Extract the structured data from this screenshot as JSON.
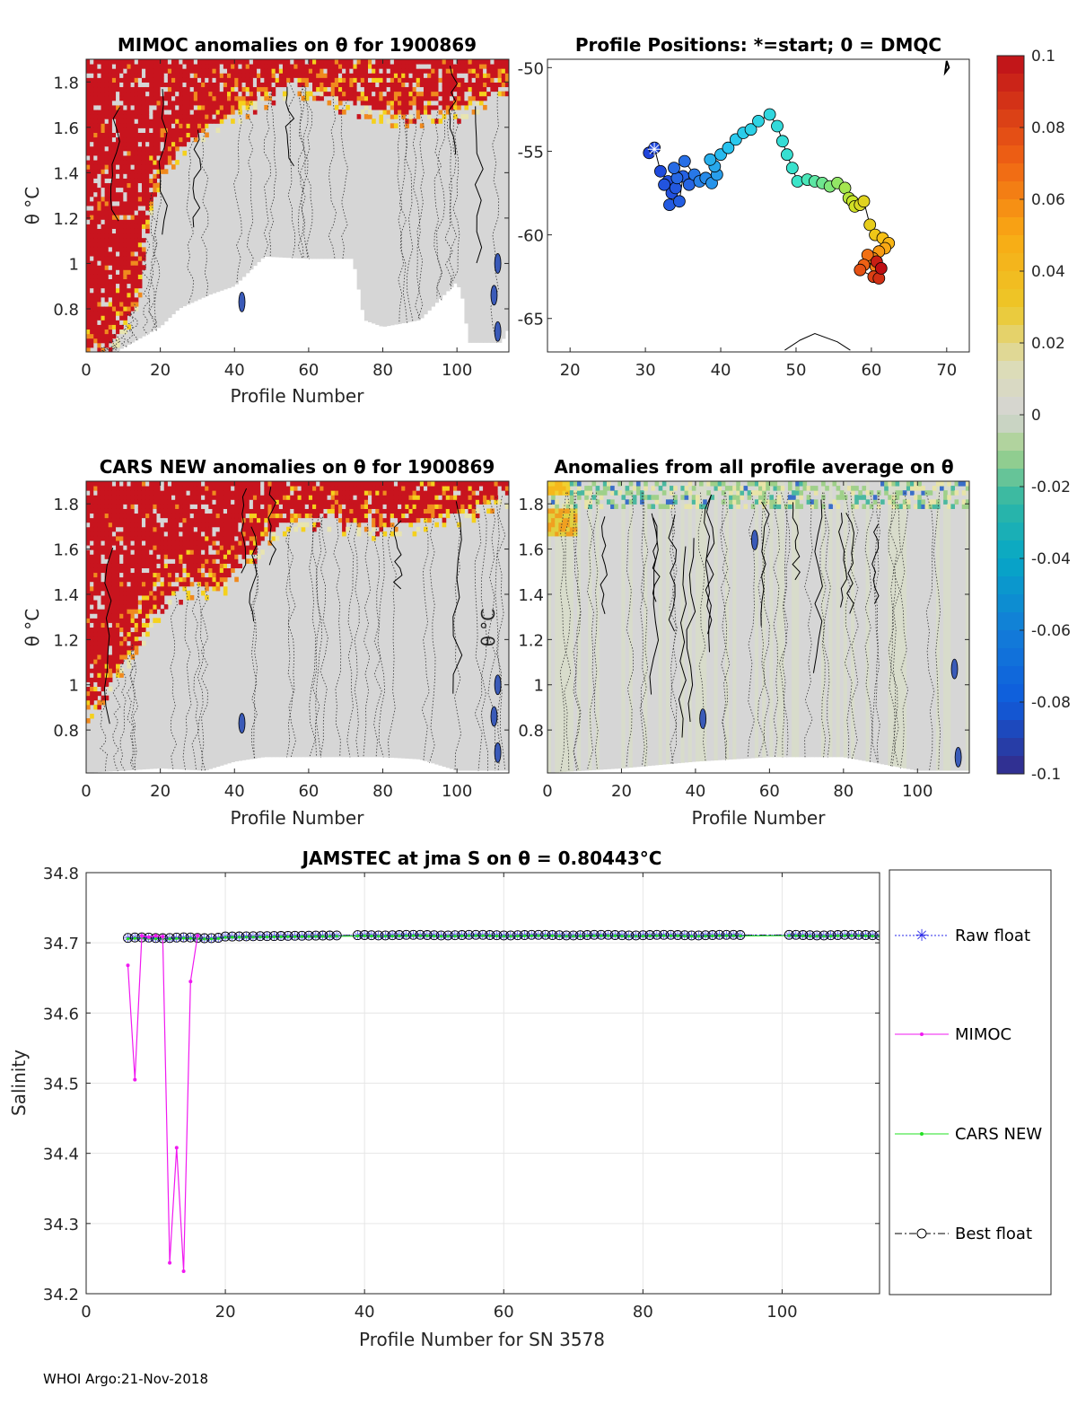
{
  "footer_text": "WHOI Argo:21-Nov-2018",
  "colors": {
    "anomaly_positive": "#c8141e",
    "anomaly_zero": "#d5d5d5",
    "anomaly_negative": "#3a4ea8",
    "raw_float": "#2a2ae8",
    "mimoc": "#f019f0",
    "cars_new": "#22e022",
    "best_float": "#000000",
    "track_start": "#1a2fd6",
    "track_end": "#c81414"
  },
  "chart_data": [
    {
      "id": "mimoc-anomaly",
      "type": "heatmap",
      "title": "MIMOC anomalies on θ  for 1900869",
      "xlabel": "Profile Number",
      "ylabel": "θ °C",
      "xlim": [
        0,
        114
      ],
      "ylim": [
        0.61,
        1.9
      ],
      "xticks": [
        0,
        20,
        40,
        60,
        80,
        100
      ],
      "yticks": [
        0.8,
        1,
        1.2,
        1.4,
        1.6,
        1.8
      ],
      "ytick_labels": [
        "0.8",
        "1",
        "1.2",
        "1.4",
        "1.6",
        "1.8"
      ],
      "clim": [
        -0.1,
        0.1
      ],
      "anomaly_level_profile": [
        [
          0,
          0.63
        ],
        [
          5,
          0.63
        ],
        [
          10,
          0.72
        ],
        [
          14,
          0.85
        ],
        [
          18,
          1.32
        ],
        [
          22,
          1.45
        ],
        [
          28,
          1.55
        ],
        [
          35,
          1.62
        ],
        [
          45,
          1.72
        ],
        [
          55,
          1.8
        ],
        [
          70,
          1.72
        ],
        [
          85,
          1.65
        ],
        [
          100,
          1.68
        ],
        [
          110,
          1.76
        ],
        [
          114,
          1.8
        ]
      ],
      "data_bottom_profile": [
        [
          0,
          0.61
        ],
        [
          8,
          0.61
        ],
        [
          20,
          0.72
        ],
        [
          25,
          0.8
        ],
        [
          33,
          0.86
        ],
        [
          40,
          0.9
        ],
        [
          48,
          1.03
        ],
        [
          60,
          1.02
        ],
        [
          72,
          1.02
        ],
        [
          75,
          0.75
        ],
        [
          80,
          0.72
        ],
        [
          90,
          0.75
        ],
        [
          100,
          0.92
        ],
        [
          102,
          0.82
        ],
        [
          103,
          0.65
        ],
        [
          112,
          0.65
        ],
        [
          114,
          0.72
        ]
      ]
    },
    {
      "id": "profile-positions",
      "type": "scatter",
      "title": "Profile Positions: *=start; 0 = DMQC",
      "xlim": [
        17,
        73
      ],
      "ylim": [
        -67,
        -49.5
      ],
      "xticks": [
        20,
        30,
        40,
        50,
        60,
        70
      ],
      "yticks": [
        -50,
        -55,
        -60,
        -65
      ],
      "colorbar_title": "",
      "colorbar_ticks": [
        -0.1,
        -0.08,
        -0.06,
        -0.04,
        -0.02,
        0,
        0.02,
        0.04,
        0.06,
        0.08,
        0.1
      ],
      "colorbar_labels": [
        "-0.1",
        "-0.08",
        "-0.06",
        "-0.04",
        "-0.02",
        "0",
        "0.02",
        "0.04",
        "0.06",
        "0.08",
        "0.1"
      ],
      "track": [
        [
          30.5,
          -55.1
        ],
        [
          31.2,
          -54.8
        ],
        [
          32.0,
          -56.2
        ],
        [
          33.0,
          -56.8
        ],
        [
          33.5,
          -57.5
        ],
        [
          32.5,
          -57.0
        ],
        [
          34.0,
          -57.2
        ],
        [
          33.2,
          -58.2
        ],
        [
          34.5,
          -58.0
        ],
        [
          35.0,
          -56.5
        ],
        [
          35.8,
          -57.0
        ],
        [
          34.2,
          -56.6
        ],
        [
          33.8,
          -56.0
        ],
        [
          35.2,
          -55.6
        ],
        [
          36.5,
          -56.4
        ],
        [
          37.2,
          -56.8
        ],
        [
          38.0,
          -56.6
        ],
        [
          38.8,
          -56.9
        ],
        [
          39.5,
          -56.4
        ],
        [
          39.2,
          -55.9
        ],
        [
          38.6,
          -55.5
        ],
        [
          40.0,
          -55.2
        ],
        [
          41.0,
          -54.8
        ],
        [
          42.0,
          -54.3
        ],
        [
          43.0,
          -53.9
        ],
        [
          44.0,
          -53.7
        ],
        [
          45.0,
          -53.2
        ],
        [
          46.5,
          -52.8
        ],
        [
          47.5,
          -53.5
        ],
        [
          48.2,
          -54.4
        ],
        [
          48.8,
          -55.2
        ],
        [
          49.5,
          -56.0
        ],
        [
          50.2,
          -56.8
        ],
        [
          51.5,
          -56.7
        ],
        [
          52.5,
          -56.8
        ],
        [
          53.5,
          -56.9
        ],
        [
          54.5,
          -57.1
        ],
        [
          55.5,
          -56.9
        ],
        [
          56.5,
          -57.2
        ],
        [
          57.0,
          -57.8
        ],
        [
          57.5,
          -58.0
        ],
        [
          57.8,
          -58.3
        ],
        [
          58.5,
          -58.2
        ],
        [
          59.0,
          -58.0
        ],
        [
          59.8,
          -59.4
        ],
        [
          60.5,
          -60.0
        ],
        [
          61.5,
          -60.2
        ],
        [
          62.3,
          -60.5
        ],
        [
          61.8,
          -60.8
        ],
        [
          61.0,
          -61.0
        ],
        [
          60.2,
          -61.4
        ],
        [
          60.6,
          -61.9
        ],
        [
          59.5,
          -61.2
        ],
        [
          59.0,
          -61.8
        ],
        [
          58.5,
          -62.1
        ],
        [
          60.3,
          -62.5
        ],
        [
          61.0,
          -62.6
        ],
        [
          60.7,
          -61.6
        ],
        [
          61.3,
          -62.0
        ]
      ],
      "start": [
        31.2,
        -54.9
      ],
      "coast_island": [
        [
          69.8,
          -50.3
        ],
        [
          70.3,
          -50.0
        ],
        [
          70.0,
          -49.6
        ]
      ],
      "coast_bottom": [
        [
          48.5,
          -66.9
        ],
        [
          50.5,
          -66.3
        ],
        [
          52.5,
          -65.9
        ],
        [
          55.5,
          -66.4
        ],
        [
          57.2,
          -66.9
        ]
      ]
    },
    {
      "id": "cars-new-anomaly",
      "type": "heatmap",
      "title": "CARS NEW anomalies on θ for 1900869",
      "xlabel": "Profile Number",
      "ylabel": "θ °C",
      "xlim": [
        0,
        114
      ],
      "ylim": [
        0.61,
        1.9
      ],
      "xticks": [
        0,
        20,
        40,
        60,
        80,
        100
      ],
      "yticks": [
        0.8,
        1,
        1.2,
        1.4,
        1.6,
        1.8
      ],
      "ytick_labels": [
        "0.8",
        "1",
        "1.2",
        "1.4",
        "1.6",
        "1.8"
      ],
      "anomaly_level_profile": [
        [
          0,
          0.88
        ],
        [
          4,
          0.96
        ],
        [
          8,
          1.06
        ],
        [
          12,
          1.15
        ],
        [
          16,
          1.25
        ],
        [
          22,
          1.4
        ],
        [
          30,
          1.45
        ],
        [
          36,
          1.42
        ],
        [
          42,
          1.55
        ],
        [
          50,
          1.68
        ],
        [
          60,
          1.75
        ],
        [
          80,
          1.7
        ],
        [
          100,
          1.76
        ],
        [
          110,
          1.82
        ],
        [
          114,
          1.85
        ]
      ],
      "data_bottom_profile": [
        [
          0,
          0.61
        ],
        [
          20,
          0.63
        ],
        [
          32,
          0.62
        ],
        [
          40,
          0.66
        ],
        [
          48,
          0.68
        ],
        [
          60,
          0.68
        ],
        [
          80,
          0.68
        ],
        [
          90,
          0.67
        ],
        [
          100,
          0.62
        ],
        [
          114,
          0.62
        ]
      ]
    },
    {
      "id": "all-profile-anomaly",
      "type": "heatmap",
      "title": "Anomalies from all profile average on θ",
      "xlabel": "Profile Number",
      "ylabel": "θ °C",
      "xlim": [
        0,
        114
      ],
      "ylim": [
        0.61,
        1.9
      ],
      "xticks": [
        0,
        20,
        40,
        60,
        80,
        100
      ],
      "yticks": [
        0.8,
        1,
        1.2,
        1.4,
        1.6,
        1.8
      ],
      "ytick_labels": [
        "0.8",
        "1",
        "1.2",
        "1.4",
        "1.6",
        "1.8"
      ],
      "data_bottom_profile": [
        [
          0,
          0.61
        ],
        [
          20,
          0.63
        ],
        [
          40,
          0.66
        ],
        [
          60,
          0.68
        ],
        [
          80,
          0.68
        ],
        [
          100,
          0.62
        ],
        [
          114,
          0.62
        ]
      ]
    },
    {
      "id": "jamstec-salinity",
      "type": "line",
      "title": "JAMSTEC at jma S on θ = 0.80443°C",
      "xlabel": "Profile Number for SN 3578",
      "ylabel": "Salinity",
      "xlim": [
        0,
        114
      ],
      "ylim": [
        34.2,
        34.8
      ],
      "xticks": [
        0,
        20,
        40,
        60,
        80,
        100
      ],
      "yticks": [
        34.2,
        34.3,
        34.4,
        34.5,
        34.6,
        34.7,
        34.8
      ],
      "ytick_labels": [
        "34.2",
        "34.3",
        "34.4",
        "34.5",
        "34.6",
        "34.7",
        "34.8"
      ],
      "grid": true,
      "legend_position": "outside-right",
      "profiles_start": 6,
      "profiles_end": 114,
      "missing_profiles": [
        37,
        38,
        95,
        96,
        97,
        98,
        99,
        100
      ],
      "float_salinity_base": 34.709,
      "float_salinity_mid": 34.711,
      "mimoc": {
        "name": "MIMOC",
        "x": [
          6,
          7,
          8,
          9,
          10,
          11,
          12,
          13,
          14,
          15,
          16
        ],
        "y": [
          34.668,
          34.505,
          34.71,
          34.708,
          34.71,
          34.709,
          34.244,
          34.408,
          34.232,
          34.645,
          34.71
        ]
      },
      "legend": [
        "Raw float",
        "MIMOC",
        "CARS NEW",
        "Best float"
      ]
    }
  ]
}
